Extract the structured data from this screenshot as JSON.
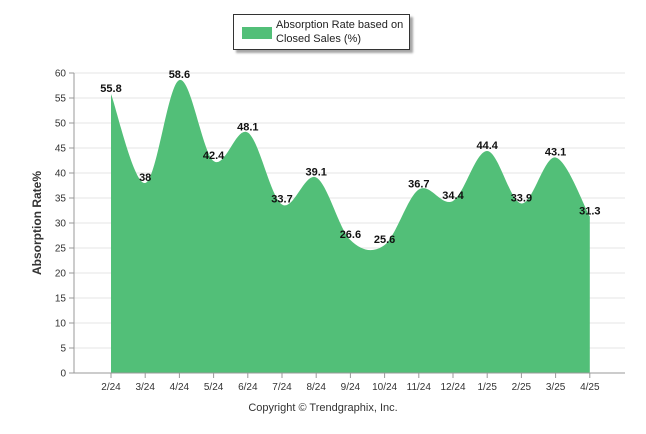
{
  "chart_data": {
    "type": "area",
    "ylabel": "Absorption Rate%",
    "ylim": [
      0,
      60
    ],
    "yticks": [
      0,
      5,
      10,
      15,
      20,
      25,
      30,
      35,
      40,
      45,
      50,
      55,
      60
    ],
    "categories": [
      "2/24",
      "3/24",
      "4/24",
      "5/24",
      "6/24",
      "7/24",
      "8/24",
      "9/24",
      "10/24",
      "11/24",
      "12/24",
      "1/25",
      "2/25",
      "3/25",
      "4/25"
    ],
    "series": [
      {
        "name": "Absorption Rate based on Closed Sales (%)",
        "values": [
          55.8,
          38,
          58.6,
          42.4,
          48.1,
          33.7,
          39.1,
          26.6,
          25.6,
          36.7,
          34.4,
          44.4,
          33.9,
          43.1,
          31.3
        ],
        "labels": [
          "55.8",
          "38",
          "58.6",
          "42.4",
          "48.1",
          "33.7",
          "39.1",
          "26.6",
          "25.6",
          "36.7",
          "34.4",
          "44.4",
          "33.9",
          "43.1",
          "31.3"
        ],
        "color": "#52bf78"
      }
    ],
    "legend": {
      "position": "top-center"
    },
    "grid": true
  },
  "footer": {
    "copyright": "Copyright © Trendgraphix, Inc."
  }
}
